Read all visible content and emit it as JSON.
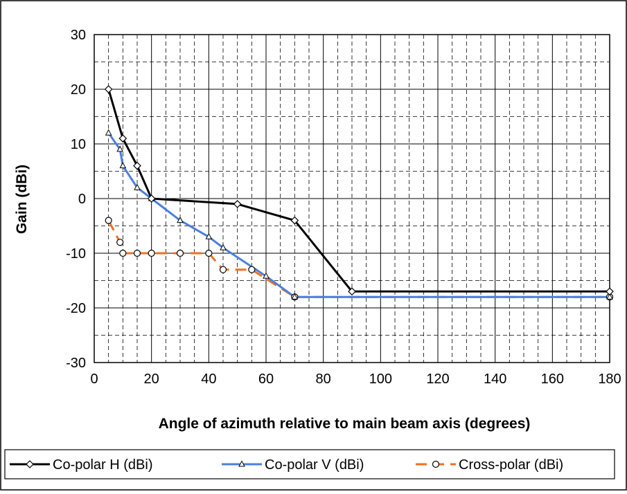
{
  "chart_data": {
    "type": "line",
    "title": "",
    "xlabel": "Angle of azimuth relative to main beam axis (degrees)",
    "ylabel": "Gain (dBi)",
    "xlim": [
      0,
      180
    ],
    "ylim": [
      -30,
      30
    ],
    "x_ticks": [
      "0",
      "20",
      "40",
      "60",
      "80",
      "100",
      "120",
      "140",
      "160",
      "180"
    ],
    "y_ticks": [
      "30",
      "20",
      "10",
      "0",
      "-10",
      "-20",
      "-30"
    ],
    "x_tick_values": [
      0,
      20,
      40,
      60,
      80,
      100,
      120,
      140,
      160,
      180
    ],
    "y_tick_values": [
      30,
      20,
      10,
      0,
      -10,
      -20,
      -30
    ],
    "grid": true,
    "legend_position": "bottom",
    "series": [
      {
        "name": "Co-polar H (dBi)",
        "color": "#000000",
        "dashed": false,
        "marker": "diamond",
        "points": [
          [
            5,
            20
          ],
          [
            10,
            11
          ],
          [
            15,
            6
          ],
          [
            20,
            0
          ],
          [
            50,
            -1
          ],
          [
            70,
            -4
          ],
          [
            90,
            -17
          ],
          [
            180,
            -17
          ]
        ]
      },
      {
        "name": "Co-polar V (dBi)",
        "color": "#4a7fe0",
        "dashed": false,
        "marker": "triangle",
        "points": [
          [
            5,
            12
          ],
          [
            9,
            9
          ],
          [
            10,
            6
          ],
          [
            15,
            2
          ],
          [
            20,
            0
          ],
          [
            30,
            -4
          ],
          [
            40,
            -7
          ],
          [
            45,
            -9
          ],
          [
            60,
            -14.2
          ],
          [
            70,
            -18
          ],
          [
            180,
            -18
          ]
        ]
      },
      {
        "name": "Cross-polar (dBi)",
        "color": "#f07020",
        "dashed": true,
        "marker": "circle",
        "points": [
          [
            5,
            -4
          ],
          [
            9,
            -8
          ],
          [
            10,
            -10
          ],
          [
            15,
            -10
          ],
          [
            20,
            -10
          ],
          [
            30,
            -10
          ],
          [
            40,
            -10
          ],
          [
            45,
            -13
          ],
          [
            55,
            -13
          ],
          [
            70,
            -18
          ],
          [
            180,
            -18
          ]
        ]
      }
    ]
  }
}
